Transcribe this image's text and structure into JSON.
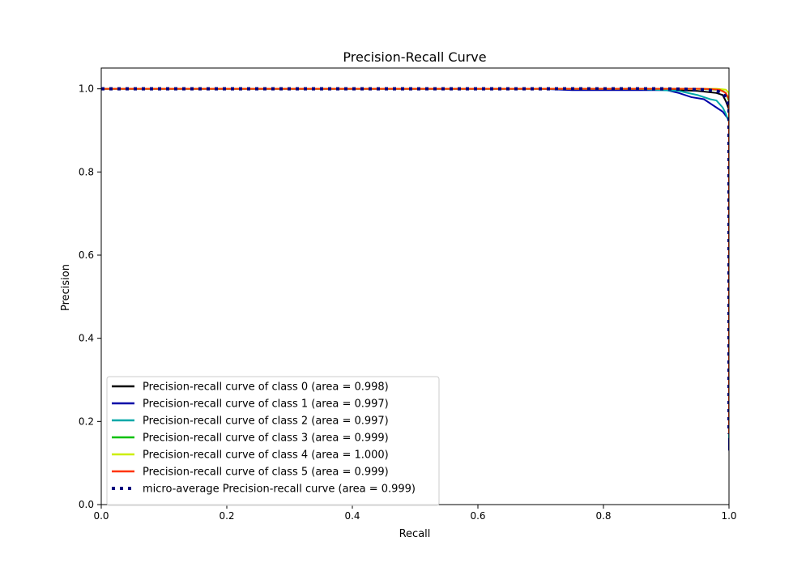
{
  "chart_data": {
    "type": "line",
    "title": "Precision-Recall Curve",
    "xlabel": "Recall",
    "ylabel": "Precision",
    "xlim": [
      0.0,
      1.0
    ],
    "ylim": [
      0.0,
      1.05
    ],
    "xticks": [
      "0.0",
      "0.2",
      "0.4",
      "0.6",
      "0.8",
      "1.0"
    ],
    "yticks": [
      "0.0",
      "0.2",
      "0.4",
      "0.6",
      "0.8",
      "1.0"
    ],
    "grid": false,
    "legend_position": "lower-left",
    "series": [
      {
        "name": "Precision-recall curve of class 0 (area = 0.998)",
        "color": "#000000",
        "style": "solid",
        "x": [
          0.0,
          0.7,
          0.9,
          0.95,
          0.98,
          0.99,
          0.995,
          1.0,
          1.0
        ],
        "y": [
          1.0,
          1.0,
          0.998,
          0.995,
          0.99,
          0.985,
          0.97,
          0.95,
          0.16
        ]
      },
      {
        "name": "Precision-recall curve of class 1 (area = 0.997)",
        "color": "#0000a8",
        "style": "solid",
        "x": [
          0.0,
          0.7,
          0.75,
          0.9,
          0.92,
          0.94,
          0.96,
          0.97,
          0.98,
          0.99,
          0.995,
          1.0,
          1.0
        ],
        "y": [
          1.0,
          1.0,
          0.997,
          0.997,
          0.99,
          0.98,
          0.975,
          0.965,
          0.955,
          0.945,
          0.935,
          0.925,
          0.13
        ]
      },
      {
        "name": "Precision-recall curve of class 2 (area = 0.997)",
        "color": "#00a8a8",
        "style": "solid",
        "x": [
          0.0,
          0.85,
          0.92,
          0.95,
          0.97,
          0.98,
          0.99,
          0.995,
          1.0,
          1.0
        ],
        "y": [
          1.0,
          1.0,
          0.995,
          0.985,
          0.975,
          0.972,
          0.955,
          0.94,
          0.92,
          0.16
        ]
      },
      {
        "name": "Precision-recall curve of class 3 (area = 0.999)",
        "color": "#00c000",
        "style": "solid",
        "x": [
          0.0,
          0.95,
          0.98,
          0.99,
          0.995,
          1.0,
          1.0
        ],
        "y": [
          1.0,
          1.0,
          0.998,
          0.995,
          0.99,
          0.97,
          0.17
        ]
      },
      {
        "name": "Precision-recall curve of class 4 (area = 1.000)",
        "color": "#ccee00",
        "style": "solid",
        "x": [
          0.0,
          0.98,
          0.995,
          1.0,
          1.0
        ],
        "y": [
          1.0,
          1.0,
          0.998,
          0.99,
          0.17
        ]
      },
      {
        "name": "Precision-recall curve of class 5 (area = 0.999)",
        "color": "#ff3300",
        "style": "solid",
        "x": [
          0.0,
          0.96,
          0.985,
          0.995,
          1.0,
          1.0
        ],
        "y": [
          1.0,
          1.0,
          0.998,
          0.99,
          0.975,
          0.17
        ]
      },
      {
        "name": "micro-average Precision-recall curve (area = 0.999)",
        "color": "#000080",
        "style": "dotted",
        "x": [
          0.0,
          0.9,
          0.96,
          0.98,
          0.99,
          0.995,
          1.0,
          1.0
        ],
        "y": [
          1.0,
          1.0,
          0.998,
          0.995,
          0.99,
          0.98,
          0.96,
          0.17
        ]
      }
    ]
  }
}
